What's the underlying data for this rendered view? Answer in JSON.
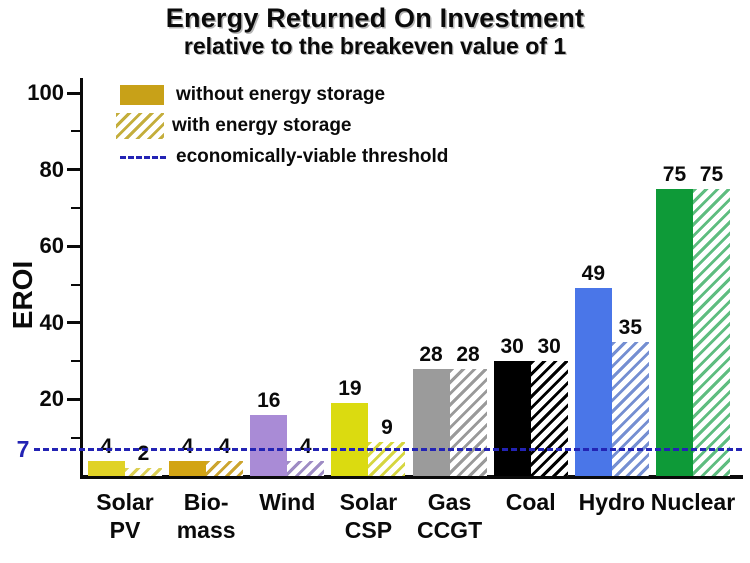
{
  "title": "Energy Returned On Investment",
  "subtitle": "relative to the breakeven value of 1",
  "legend": {
    "without_label": "without energy storage",
    "with_label": "with energy storage",
    "threshold_label": "economically-viable threshold"
  },
  "colors": {
    "threshold": "#2323B4",
    "legend_swatch": "#C8A118",
    "legend_hatch_stripe": "#C4AE3C",
    "axis": "#0a0a0a",
    "background": "#ffffff"
  },
  "chart_data": {
    "type": "bar",
    "title": "Energy Returned On Investment",
    "subtitle": "relative to the breakeven value of 1",
    "xlabel": "",
    "ylabel": "EROI",
    "ylim": [
      0,
      105
    ],
    "grid": false,
    "legend_position": "top-left",
    "y_major_ticks": [
      20,
      40,
      60,
      80,
      100
    ],
    "y_minor_ticks": [
      10,
      30,
      50,
      70,
      90
    ],
    "threshold": {
      "value": 7,
      "label": "7",
      "name": "economically-viable threshold"
    },
    "categories": [
      "Solar PV",
      "Bio-mass",
      "Wind",
      "Solar CSP",
      "Gas CCGT",
      "Coal",
      "Hydro",
      "Nuclear"
    ],
    "category_lines": [
      [
        "Solar",
        "PV"
      ],
      [
        "Bio-",
        "mass"
      ],
      [
        "Wind"
      ],
      [
        "Solar",
        "CSP"
      ],
      [
        "Gas",
        "CCGT"
      ],
      [
        "Coal"
      ],
      [
        "Hydro"
      ],
      [
        "Nuclear"
      ]
    ],
    "series": [
      {
        "name": "without energy storage",
        "style": "solid",
        "values": [
          4,
          4,
          16,
          19,
          28,
          30,
          49,
          75
        ]
      },
      {
        "name": "with energy storage",
        "style": "hatched",
        "values": [
          2,
          4,
          4,
          9,
          28,
          30,
          35,
          75
        ]
      }
    ],
    "bar_colors": [
      "#E0D226",
      "#D2A414",
      "#A98BD6",
      "#DBDB10",
      "#9B9B9B",
      "#000000",
      "#4A76E8",
      "#0E9A38"
    ],
    "hatch_colors": [
      "#DCD055",
      "#CCA42E",
      "#9E8CC4",
      "#D6D640",
      "#9A9A9A",
      "#000000",
      "#758FD2",
      "#5FBD80"
    ]
  }
}
